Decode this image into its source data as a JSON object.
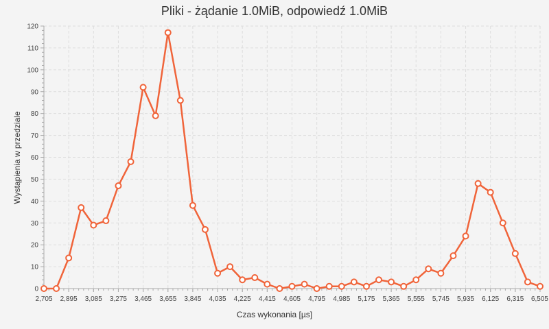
{
  "chart_data": {
    "type": "line",
    "title": "Pliki - żądanie 1.0MiB, odpowiedź 1.0MiB",
    "xlabel": "Czas wykonania [µs]",
    "ylabel": "Wystąpienia w przedziale",
    "xlim": [
      2705,
      6505
    ],
    "ylim": [
      0,
      120
    ],
    "x_ticks": [
      2705,
      2895,
      3085,
      3275,
      3465,
      3655,
      3845,
      4035,
      4225,
      4415,
      4605,
      4795,
      4985,
      5175,
      5365,
      5555,
      5745,
      5935,
      6125,
      6315,
      6505
    ],
    "x_tick_labels": [
      "2,705",
      "2,895",
      "3,085",
      "3,275",
      "3,465",
      "3,655",
      "3,845",
      "4,035",
      "4,225",
      "4,415",
      "4,605",
      "4,795",
      "4,985",
      "5,175",
      "5,365",
      "5,555",
      "5,745",
      "5,935",
      "6,125",
      "6,315",
      "6,505"
    ],
    "y_ticks": [
      0,
      10,
      20,
      30,
      40,
      50,
      60,
      70,
      80,
      90,
      100,
      110,
      120
    ],
    "grid": true,
    "legend": false,
    "series": [
      {
        "color": "#f0643a",
        "x": [
          2705,
          2800,
          2895,
          2990,
          3085,
          3180,
          3275,
          3370,
          3465,
          3560,
          3655,
          3750,
          3845,
          3940,
          4035,
          4130,
          4225,
          4320,
          4415,
          4510,
          4605,
          4700,
          4795,
          4890,
          4985,
          5080,
          5175,
          5270,
          5365,
          5460,
          5555,
          5650,
          5745,
          5840,
          5935,
          6030,
          6125,
          6220,
          6315,
          6410,
          6505
        ],
        "values": [
          0,
          0,
          14,
          37,
          29,
          31,
          47,
          58,
          92,
          79,
          117,
          86,
          38,
          27,
          7,
          10,
          4,
          5,
          2,
          0,
          1,
          2,
          0,
          1,
          1,
          3,
          1,
          4,
          3,
          1,
          4,
          9,
          7,
          15,
          24,
          48,
          44,
          30,
          16,
          3,
          1
        ]
      }
    ]
  }
}
